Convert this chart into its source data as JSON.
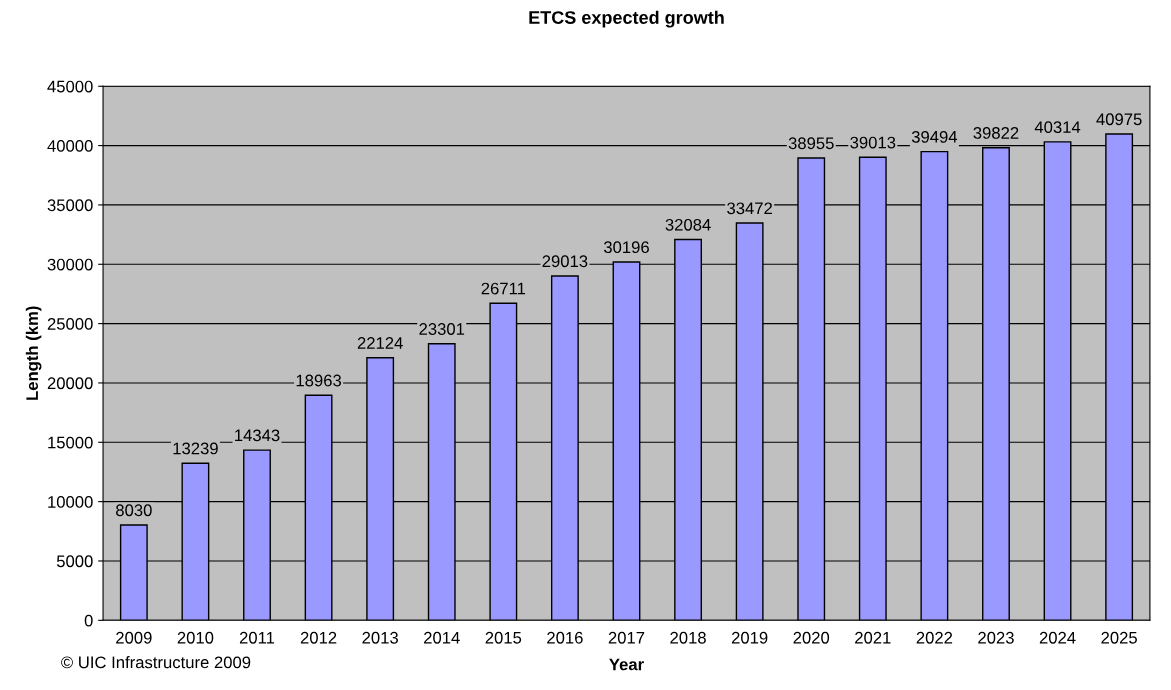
{
  "chart_data": {
    "type": "bar",
    "title": "ETCS expected growth",
    "xlabel": "Year",
    "ylabel": "Length (km)",
    "categories": [
      "2009",
      "2010",
      "2011",
      "2012",
      "2013",
      "2014",
      "2015",
      "2016",
      "2017",
      "2018",
      "2019",
      "2020",
      "2021",
      "2022",
      "2023",
      "2024",
      "2025"
    ],
    "values": [
      8030,
      13239,
      14343,
      18963,
      22124,
      23301,
      26711,
      29013,
      30196,
      32084,
      33472,
      38955,
      39013,
      39494,
      39822,
      40314,
      40975
    ],
    "color": "#9999ff",
    "ylim": [
      0,
      45000
    ],
    "yticks": [
      0,
      5000,
      10000,
      15000,
      20000,
      25000,
      30000,
      35000,
      40000,
      45000
    ],
    "grid": "y",
    "data_labels": true,
    "legend": false,
    "annotations": [
      "© UIC Infrastructure 2009"
    ]
  }
}
